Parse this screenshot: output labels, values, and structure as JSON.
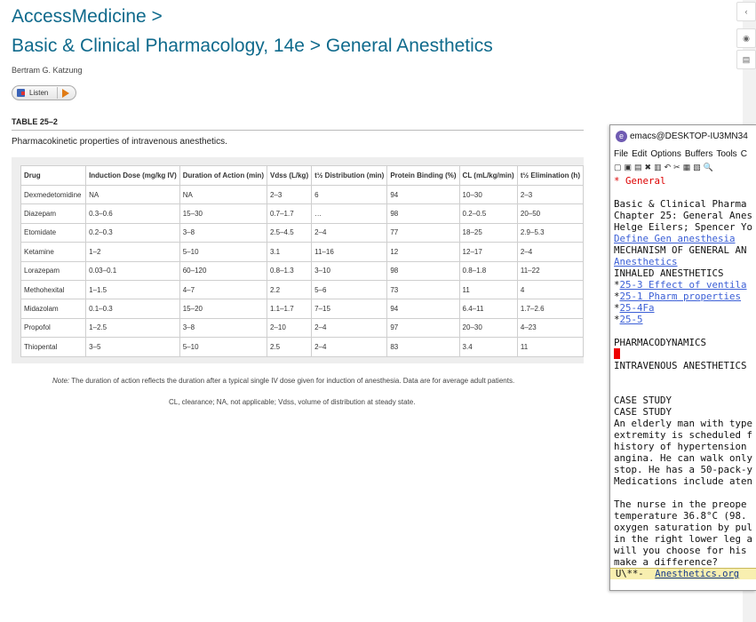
{
  "header": {
    "site": "AccessMedicine >",
    "book": "Basic & Clinical Pharmacology, 14e > General Anesthetics",
    "author": "Bertram G. Katzung",
    "listen_label": "Listen"
  },
  "table": {
    "label": "TABLE 25–2",
    "caption": "Pharmacokinetic properties of intravenous anesthetics.",
    "headers": [
      "Drug",
      "Induction Dose (mg/kg IV)",
      "Duration of Action (min)",
      "Vdss (L/kg)",
      "t½ Distribution (min)",
      "Protein Binding (%)",
      "CL (mL/kg/min)",
      "t½ Elimination (h)"
    ],
    "rows": [
      [
        "Dexmedetomidine",
        "NA",
        "NA",
        "2–3",
        "6",
        "94",
        "10–30",
        "2–3"
      ],
      [
        "Diazepam",
        "0.3–0.6",
        "15–30",
        "0.7–1.7",
        "…",
        "98",
        "0.2–0.5",
        "20–50"
      ],
      [
        "Etomidate",
        "0.2–0.3",
        "3–8",
        "2.5–4.5",
        "2–4",
        "77",
        "18–25",
        "2.9–5.3"
      ],
      [
        "Ketamine",
        "1–2",
        "5–10",
        "3.1",
        "11–16",
        "12",
        "12–17",
        "2–4"
      ],
      [
        "Lorazepam",
        "0.03–0.1",
        "60–120",
        "0.8–1.3",
        "3–10",
        "98",
        "0.8–1.8",
        "11–22"
      ],
      [
        "Methohexital",
        "1–1.5",
        "4–7",
        "2.2",
        "5–6",
        "73",
        "11",
        "4"
      ],
      [
        "Midazolam",
        "0.1–0.3",
        "15–20",
        "1.1–1.7",
        "7–15",
        "94",
        "6.4–11",
        "1.7–2.6"
      ],
      [
        "Propofol",
        "1–2.5",
        "3–8",
        "2–10",
        "2–4",
        "97",
        "20–30",
        "4–23"
      ],
      [
        "Thiopental",
        "3–5",
        "5–10",
        "2.5",
        "2–4",
        "83",
        "3.4",
        "11"
      ]
    ],
    "note_label": "Note:",
    "note_text": " The duration of action reflects the duration after a typical single IV dose given for induction of anesthesia. Data are for average adult patients.",
    "abbreviations": "CL, clearance; NA, not applicable; Vdss, volume of distribution at steady state."
  },
  "rail": {
    "collapse_icon": "chevron-left-icon",
    "collapse_glyph": "‹",
    "eye_glyph": "◉",
    "note_glyph": "▤"
  },
  "emacs": {
    "title": "emacs@DESKTOP-IU3MN34",
    "logo_glyph": "e",
    "menu": [
      "File",
      "Edit",
      "Options",
      "Buffers",
      "Tools",
      "C"
    ],
    "toolbar_glyphs": [
      "▢",
      "▣",
      "▤",
      "✖",
      "▥",
      "↶",
      "✂",
      "▦",
      "▧",
      "🔍"
    ],
    "lines": [
      {
        "text": "* General",
        "style": "red"
      },
      {
        "text": "",
        "style": "plain"
      },
      {
        "text": "Basic & Clinical Pharma",
        "style": "plain"
      },
      {
        "text": "Chapter 25: General Anes",
        "style": "plain"
      },
      {
        "text": "Helge Eilers; Spencer Yo",
        "style": "plain"
      },
      {
        "text": "Define Gen anesthesia",
        "style": "link"
      },
      {
        "text": "MECHANISM OF GENERAL AN",
        "style": "plain"
      },
      {
        "text": "Anesthetics",
        "style": "link"
      },
      {
        "text": "INHALED ANESTHETICS",
        "style": "plain"
      },
      {
        "text": "*",
        "link": "25-3 Effect of ventila",
        "style": "bullet"
      },
      {
        "text": "*",
        "link": "25-1 Pharm properties",
        "style": "bullet"
      },
      {
        "text": "*",
        "link": "25-4Fa",
        "style": "bullet"
      },
      {
        "text": "*",
        "link": "25-5",
        "style": "bullet"
      },
      {
        "text": "",
        "style": "plain"
      },
      {
        "text": "PHARMACODYNAMICS",
        "style": "plain"
      },
      {
        "text": "",
        "style": "cursor"
      },
      {
        "text": "INTRAVENOUS ANESTHETICS",
        "style": "plain"
      },
      {
        "text": "",
        "style": "plain"
      },
      {
        "text": "",
        "style": "plain"
      },
      {
        "text": "CASE STUDY",
        "style": "plain"
      },
      {
        "text": "CASE STUDY",
        "style": "plain"
      },
      {
        "text": "An elderly man with type",
        "style": "plain"
      },
      {
        "text": "extremity is scheduled f",
        "style": "plain"
      },
      {
        "text": "history of hypertension",
        "style": "plain"
      },
      {
        "text": "angina. He can walk only",
        "style": "plain"
      },
      {
        "text": "stop. He has a 50-pack-y",
        "style": "plain"
      },
      {
        "text": "Medications include aten",
        "style": "plain"
      },
      {
        "text": "",
        "style": "plain"
      },
      {
        "text": "The nurse in the preope",
        "style": "plain"
      },
      {
        "text": "temperature 36.8°C (98.",
        "style": "plain"
      },
      {
        "text": "oxygen saturation by pul",
        "style": "plain"
      },
      {
        "text": "in the right lower leg a",
        "style": "plain"
      },
      {
        "text": "will you choose for his",
        "style": "plain"
      },
      {
        "text": "make a difference?",
        "style": "plain"
      }
    ],
    "modeline_status": "U\\**-  ",
    "modeline_buffer": "Anesthetics.org"
  }
}
